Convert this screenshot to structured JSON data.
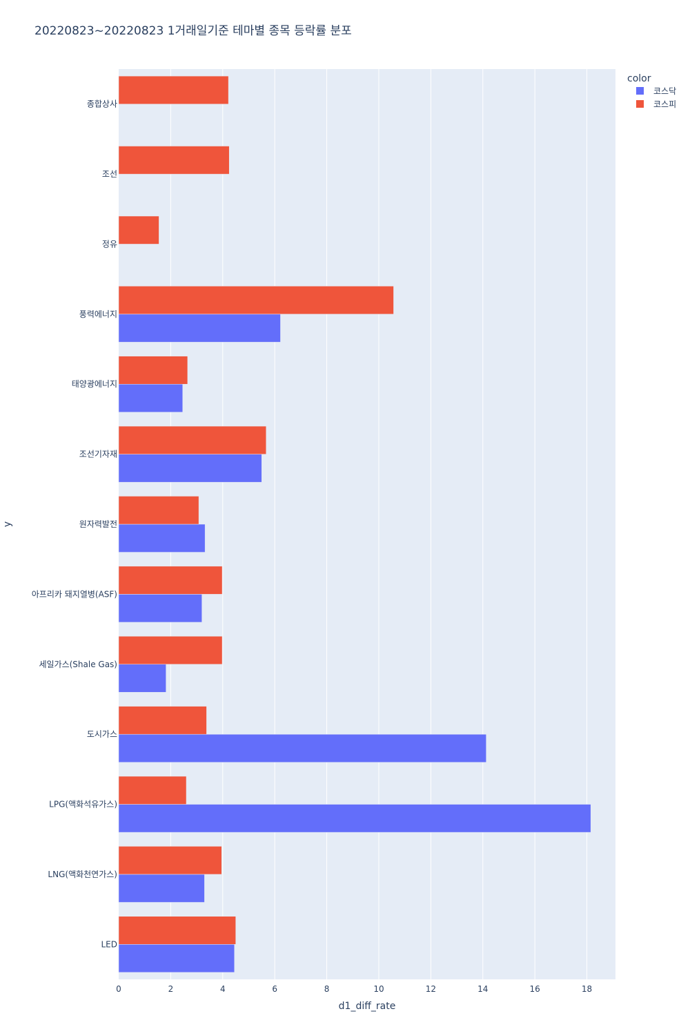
{
  "chart_data": {
    "type": "bar",
    "orientation": "horizontal",
    "barmode": "group",
    "title": "20220823~20220823 1거래일기준 테마별 종목 등락률 분포",
    "xlabel": "d1_diff_rate",
    "ylabel": "y",
    "xlim": [
      0,
      19.1
    ],
    "xticks": [
      0,
      2,
      4,
      6,
      8,
      10,
      12,
      14,
      16,
      18
    ],
    "grid": true,
    "legend": {
      "title": "color",
      "position": "top-right"
    },
    "categories": [
      "종합상사",
      "조선",
      "정유",
      "풍력에너지",
      "태양광에너지",
      "조선기자재",
      "원자력발전",
      "아프리카 돼지열병(ASF)",
      "세일가스(Shale Gas)",
      "도시가스",
      "LPG(액화석유가스)",
      "LNG(액화천연가스)",
      "LED"
    ],
    "series": [
      {
        "name": "코스닥",
        "color": "#636efa",
        "values": [
          null,
          null,
          null,
          6.22,
          2.46,
          5.5,
          3.32,
          3.2,
          1.82,
          14.13,
          18.15,
          3.3,
          4.45
        ]
      },
      {
        "name": "코스피",
        "color": "#ef553b",
        "values": [
          4.22,
          4.25,
          1.55,
          10.57,
          2.65,
          5.67,
          3.08,
          3.98,
          3.98,
          3.38,
          2.6,
          3.96,
          4.5
        ]
      }
    ]
  },
  "colors": {
    "plot_bg": "#e5ecf6",
    "grid": "#ffffff",
    "text": "#2a3f5f"
  }
}
